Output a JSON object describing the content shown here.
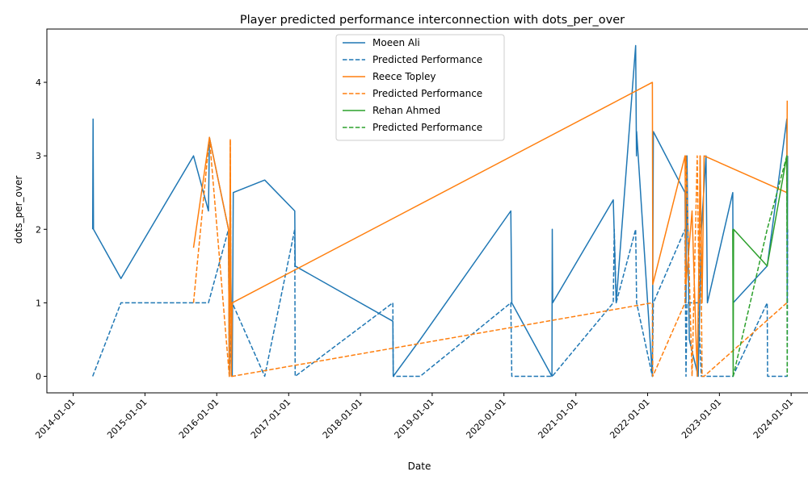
{
  "chart_data": {
    "type": "line",
    "title": "Player predicted performance interconnection with dots_per_over",
    "xlabel": "Date",
    "ylabel": "dots_per_over",
    "xlim": [
      "2013-08-20",
      "2024-05-15"
    ],
    "ylim": [
      -0.225,
      4.725
    ],
    "x_ticks": [
      "2014-01-01",
      "2015-01-01",
      "2016-01-01",
      "2017-01-01",
      "2018-01-01",
      "2019-01-01",
      "2020-01-01",
      "2021-01-01",
      "2022-01-01",
      "2023-01-01",
      "2024-01-01"
    ],
    "y_ticks": [
      0,
      1,
      2,
      3,
      4
    ],
    "legend_position": "top-center",
    "grid": false,
    "series": [
      {
        "name": "Moeen Ali",
        "color": "#1f77b4",
        "style": "solid",
        "points": [
          [
            "2014-04-10",
            2.0
          ],
          [
            "2014-04-12",
            3.5
          ],
          [
            "2014-04-14",
            2.0
          ],
          [
            "2014-09-01",
            1.33
          ],
          [
            "2015-09-05",
            3.0
          ],
          [
            "2015-11-20",
            2.25
          ],
          [
            "2015-11-25",
            3.25
          ],
          [
            "2016-03-01",
            2.0
          ],
          [
            "2016-03-05",
            0.0
          ],
          [
            "2016-03-10",
            2.0
          ],
          [
            "2016-03-20",
            0.0
          ],
          [
            "2016-03-25",
            2.5
          ],
          [
            "2016-09-01",
            2.67
          ],
          [
            "2017-02-01",
            2.25
          ],
          [
            "2017-02-03",
            1.5
          ],
          [
            "2018-06-15",
            0.75
          ],
          [
            "2018-06-17",
            0.0
          ],
          [
            "2018-11-01",
            0.5
          ],
          [
            "2020-02-05",
            2.25
          ],
          [
            "2020-02-10",
            1.0
          ],
          [
            "2020-09-01",
            0.0
          ],
          [
            "2020-09-03",
            2.0
          ],
          [
            "2020-09-05",
            1.0
          ],
          [
            "2021-07-10",
            2.4
          ],
          [
            "2021-07-25",
            1.0
          ],
          [
            "2021-11-01",
            4.5
          ],
          [
            "2021-11-05",
            3.0
          ],
          [
            "2021-11-06",
            3.33
          ],
          [
            "2022-01-25",
            0.0
          ],
          [
            "2022-01-30",
            3.33
          ],
          [
            "2022-07-10",
            2.5
          ],
          [
            "2022-07-15",
            1.0
          ],
          [
            "2022-07-20",
            3.0
          ],
          [
            "2022-08-01",
            0.5
          ],
          [
            "2022-09-15",
            0.0
          ],
          [
            "2022-10-01",
            2.0
          ],
          [
            "2022-10-25",
            3.0
          ],
          [
            "2022-11-01",
            1.0
          ],
          [
            "2023-03-10",
            2.5
          ],
          [
            "2023-03-12",
            1.0
          ],
          [
            "2023-09-01",
            1.5
          ],
          [
            "2023-12-10",
            3.5
          ],
          [
            "2023-12-12",
            1.0
          ],
          [
            "2023-12-14",
            3.0
          ]
        ]
      },
      {
        "name": "Predicted Performance",
        "color": "#1f77b4",
        "style": "dashed",
        "points": [
          [
            "2014-04-10",
            0.0
          ],
          [
            "2014-09-01",
            1.0
          ],
          [
            "2015-11-20",
            1.0
          ],
          [
            "2016-03-01",
            2.0
          ],
          [
            "2016-03-05",
            0.0
          ],
          [
            "2016-03-20",
            1.0
          ],
          [
            "2016-09-01",
            0.0
          ],
          [
            "2017-02-01",
            2.0
          ],
          [
            "2017-02-03",
            0.0
          ],
          [
            "2018-06-15",
            1.0
          ],
          [
            "2018-06-17",
            0.0
          ],
          [
            "2018-11-01",
            0.0
          ],
          [
            "2020-02-05",
            1.0
          ],
          [
            "2020-02-10",
            0.0
          ],
          [
            "2020-09-01",
            0.0
          ],
          [
            "2020-09-03",
            0.0
          ],
          [
            "2021-07-10",
            1.0
          ],
          [
            "2021-07-15",
            2.0
          ],
          [
            "2021-07-25",
            1.0
          ],
          [
            "2021-11-01",
            2.0
          ],
          [
            "2021-11-06",
            1.0
          ],
          [
            "2022-01-25",
            0.0
          ],
          [
            "2022-01-30",
            1.0
          ],
          [
            "2022-07-10",
            2.0
          ],
          [
            "2022-07-15",
            0.0
          ],
          [
            "2022-07-20",
            1.0
          ],
          [
            "2022-09-15",
            1.0
          ],
          [
            "2022-10-01",
            0.0
          ],
          [
            "2022-11-01",
            0.0
          ],
          [
            "2023-03-10",
            0.0
          ],
          [
            "2023-09-01",
            1.0
          ],
          [
            "2023-09-03",
            0.0
          ],
          [
            "2023-12-10",
            0.0
          ],
          [
            "2023-12-12",
            0.0
          ],
          [
            "2023-12-14",
            2.0
          ]
        ]
      },
      {
        "name": "Reece Topley",
        "color": "#ff7f0e",
        "style": "solid",
        "points": [
          [
            "2015-09-05",
            1.75
          ],
          [
            "2015-11-25",
            3.25
          ],
          [
            "2016-03-01",
            2.0
          ],
          [
            "2016-03-05",
            0.0
          ],
          [
            "2016-03-10",
            3.22
          ],
          [
            "2016-03-15",
            0.0
          ],
          [
            "2016-03-20",
            1.0
          ],
          [
            "2022-01-25",
            4.0
          ],
          [
            "2022-01-27",
            1.25
          ],
          [
            "2022-07-10",
            3.0
          ],
          [
            "2022-07-15",
            1.25
          ],
          [
            "2022-08-15",
            2.25
          ],
          [
            "2022-09-10",
            0.0
          ],
          [
            "2022-09-20",
            1.75
          ],
          [
            "2022-09-25",
            3.0
          ],
          [
            "2022-10-05",
            1.0
          ],
          [
            "2022-10-15",
            3.0
          ],
          [
            "2023-12-10",
            2.5
          ],
          [
            "2023-12-12",
            3.75
          ]
        ]
      },
      {
        "name": "Predicted Performance",
        "color": "#ff7f0e",
        "style": "dashed",
        "points": [
          [
            "2015-09-05",
            1.0
          ],
          [
            "2015-11-25",
            3.25
          ],
          [
            "2016-03-05",
            0.0
          ],
          [
            "2016-03-10",
            3.22
          ],
          [
            "2016-03-15",
            0.0
          ],
          [
            "2016-03-20",
            0.0
          ],
          [
            "2022-01-25",
            1.0
          ],
          [
            "2022-01-27",
            0.0
          ],
          [
            "2022-07-10",
            1.0
          ],
          [
            "2022-07-15",
            3.0
          ],
          [
            "2022-08-15",
            0.0
          ],
          [
            "2022-09-10",
            3.0
          ],
          [
            "2022-09-20",
            1.0
          ],
          [
            "2022-09-25",
            3.0
          ],
          [
            "2022-10-05",
            0.0
          ],
          [
            "2022-10-15",
            0.0
          ],
          [
            "2023-12-10",
            1.0
          ]
        ]
      },
      {
        "name": "Rehan Ahmed",
        "color": "#2ca02c",
        "style": "solid",
        "points": [
          [
            "2023-03-10",
            2.0
          ],
          [
            "2023-03-12",
            0.0
          ],
          [
            "2023-03-14",
            2.0
          ],
          [
            "2023-09-01",
            1.5
          ],
          [
            "2023-12-10",
            3.0
          ],
          [
            "2023-12-12",
            2.0
          ]
        ]
      },
      {
        "name": "Predicted Performance",
        "color": "#2ca02c",
        "style": "dashed",
        "points": [
          [
            "2023-03-10",
            0.0
          ],
          [
            "2023-03-12",
            0.0
          ],
          [
            "2023-09-01",
            2.0
          ],
          [
            "2023-12-10",
            3.0
          ],
          [
            "2023-12-12",
            0.0
          ]
        ]
      }
    ]
  }
}
